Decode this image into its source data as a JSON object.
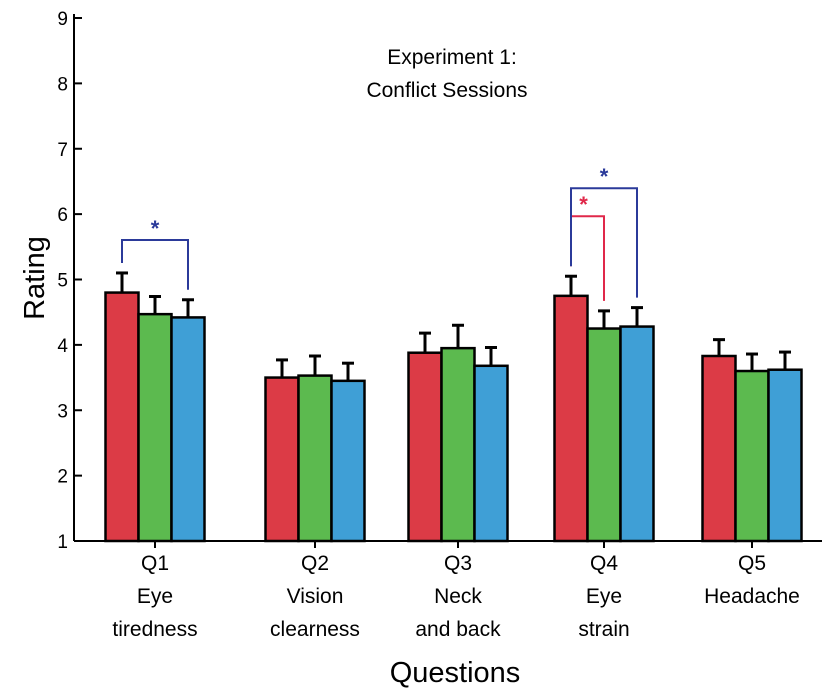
{
  "colors": {
    "series1": "#dc3b46",
    "series2": "#5cba4f",
    "series3": "#3f9fd6",
    "bracket_blue": "#2b3a9a",
    "bracket_red": "#e0284a",
    "axis": "#000000"
  },
  "chart_data": {
    "type": "bar",
    "title": [
      "Experiment 1:",
      "Conflict Sessions"
    ],
    "xlabel": "Questions",
    "ylabel": "Rating",
    "ylim": [
      1,
      9
    ],
    "yticks": [
      "1",
      "2",
      "3",
      "4",
      "5",
      "6",
      "7",
      "8",
      "9"
    ],
    "categories": [
      [
        "Q1",
        "Eye",
        "tiredness"
      ],
      [
        "Q2",
        "Vision",
        "clearness"
      ],
      [
        "Q3",
        "Neck",
        "and back"
      ],
      [
        "Q4",
        "Eye",
        "strain"
      ],
      [
        "Q5",
        "Headache"
      ]
    ],
    "series": [
      {
        "values": [
          4.8,
          3.5,
          3.88,
          4.75,
          3.83
        ],
        "errors": [
          0.3,
          0.27,
          0.3,
          0.3,
          0.25
        ]
      },
      {
        "values": [
          4.47,
          3.53,
          3.95,
          4.25,
          3.6
        ],
        "errors": [
          0.27,
          0.3,
          0.35,
          0.27,
          0.26
        ]
      },
      {
        "values": [
          4.42,
          3.45,
          3.68,
          4.28,
          3.62
        ],
        "errors": [
          0.27,
          0.27,
          0.28,
          0.29,
          0.27
        ]
      }
    ],
    "significance": [
      {
        "category": 0,
        "from": 0,
        "to": 2,
        "color": "bracket_blue",
        "label": "*"
      },
      {
        "category": 3,
        "from": 0,
        "to": 1,
        "color": "bracket_red",
        "label": "*"
      },
      {
        "category": 3,
        "from": 0,
        "to": 2,
        "color": "bracket_blue",
        "label": "*"
      }
    ]
  }
}
